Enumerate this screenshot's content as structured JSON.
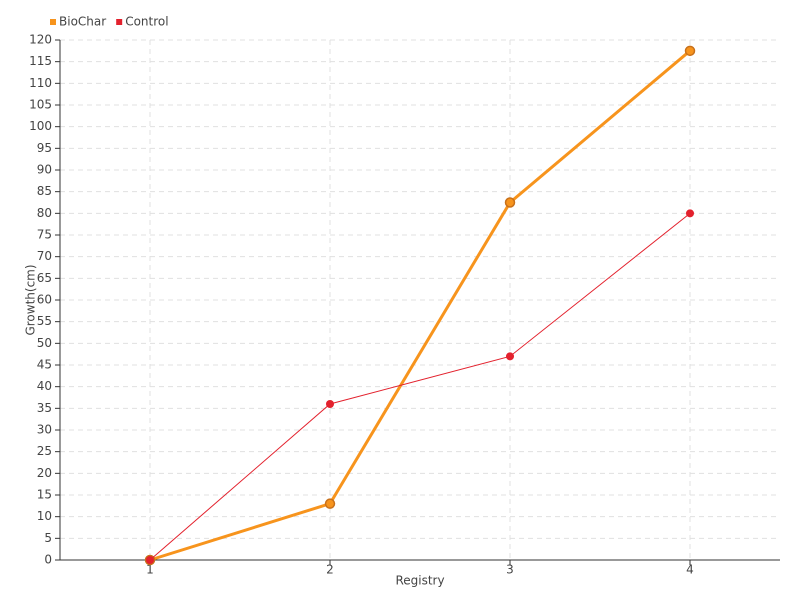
{
  "chart_data": {
    "type": "line",
    "categories": [
      "1",
      "2",
      "3",
      "4"
    ],
    "series": [
      {
        "name": "BioChar",
        "color": "#f7941d",
        "values": [
          0,
          13,
          82.5,
          117.5
        ]
      },
      {
        "name": "Control",
        "color": "#e3212d",
        "values": [
          0,
          36,
          47,
          80
        ]
      }
    ],
    "x_label": "Registry",
    "y_label": "Growth(cm)",
    "ylim": [
      0,
      120
    ],
    "yticks": [
      0,
      5,
      10,
      15,
      20,
      25,
      30,
      35,
      40,
      45,
      50,
      55,
      60,
      65,
      70,
      75,
      80,
      85,
      90,
      95,
      100,
      105,
      110,
      115,
      120
    ],
    "grid": true,
    "legend": "top-left"
  }
}
